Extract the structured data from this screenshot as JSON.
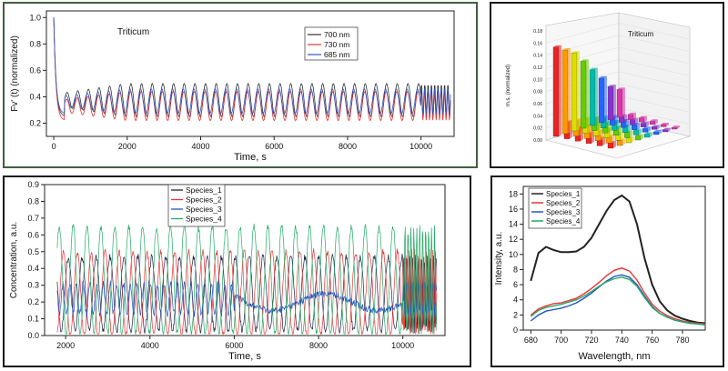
{
  "chart_data": [
    {
      "type": "line",
      "title": "Triticum",
      "xlabel": "Time, s",
      "ylabel": "Fv' (t) (normalized)",
      "xlim": [
        -200,
        10900
      ],
      "ylim": [
        0.1,
        1.05
      ],
      "xticks": [
        "0",
        "2000",
        "4000",
        "6000",
        "8000",
        "10000"
      ],
      "yticks": [
        "0.2",
        "0.4",
        "0.6",
        "0.8",
        "1.0"
      ],
      "legend_position": "top-right",
      "series": [
        {
          "name": "700 nm",
          "color": "#333333",
          "min": 0.25,
          "max": 0.5
        },
        {
          "name": "730 nm",
          "color": "#dd3333",
          "min": 0.22,
          "max": 0.44
        },
        {
          "name": "685 nm",
          "color": "#3355bb",
          "min": 0.27,
          "max": 0.46
        }
      ]
    },
    {
      "type": "bar3d",
      "title": "Triticum",
      "zlabel": "m.s. (normalized)",
      "zticks": [
        "0.00",
        "0.02",
        "0.04",
        "0.06",
        "0.08",
        "0.10",
        "0.12",
        "0.14",
        "0.16",
        "0.18"
      ],
      "values": [
        0.16,
        0.15,
        0.14,
        0.12,
        0.1,
        0.08,
        0.06,
        0.05
      ],
      "colors": [
        "#ee2222",
        "#ff9900",
        "#dddd00",
        "#66cc00",
        "#00bbaa",
        "#2266ff",
        "#8833cc",
        "#dd33aa"
      ]
    },
    {
      "type": "line",
      "xlabel": "Time, s",
      "ylabel": "Concentration, a.u.",
      "xlim": [
        1500,
        11000
      ],
      "ylim": [
        0,
        0.9
      ],
      "xticks": [
        "2000",
        "4000",
        "6000",
        "8000",
        "10000"
      ],
      "yticks": [
        "0.0",
        "0.1",
        "0.2",
        "0.3",
        "0.4",
        "0.5",
        "0.6",
        "0.7",
        "0.8",
        "0.9"
      ],
      "legend_position": "top-center",
      "series": [
        {
          "name": "Species_1",
          "color": "#222244"
        },
        {
          "name": "Species_2",
          "color": "#ee3333"
        },
        {
          "name": "Species_3",
          "color": "#2255bb"
        },
        {
          "name": "Species_4",
          "color": "#22aa66"
        }
      ]
    },
    {
      "type": "line",
      "xlabel": "Wavelength, nm",
      "ylabel": "Intensity, a.u.",
      "xlim": [
        675,
        795
      ],
      "ylim": [
        0,
        19
      ],
      "xticks": [
        "680",
        "700",
        "720",
        "740",
        "760",
        "780"
      ],
      "yticks": [
        "0",
        "2",
        "4",
        "6",
        "8",
        "10",
        "12",
        "14",
        "16",
        "18"
      ],
      "legend_position": "top-left",
      "x": [
        680,
        685,
        690,
        695,
        700,
        705,
        710,
        715,
        720,
        725,
        730,
        735,
        740,
        745,
        750,
        755,
        760,
        765,
        770,
        775,
        780,
        785,
        790,
        795
      ],
      "series": [
        {
          "name": "Species_1",
          "color": "#222222",
          "values": [
            6.5,
            10.2,
            11.0,
            10.6,
            10.3,
            10.3,
            10.4,
            11.0,
            12.2,
            14.0,
            15.8,
            17.2,
            17.8,
            17.0,
            14.0,
            9.5,
            6.0,
            3.8,
            2.6,
            1.9,
            1.5,
            1.2,
            1.0,
            0.9
          ]
        },
        {
          "name": "Species_2",
          "color": "#ee3333",
          "values": [
            2.0,
            2.8,
            3.2,
            3.5,
            3.6,
            3.9,
            4.2,
            4.8,
            5.5,
            6.3,
            7.2,
            7.9,
            8.2,
            7.8,
            6.6,
            4.9,
            3.4,
            2.5,
            1.9,
            1.5,
            1.2,
            1.0,
            0.9,
            0.8
          ]
        },
        {
          "name": "Species_3",
          "color": "#2255bb",
          "values": [
            1.2,
            2.0,
            2.5,
            2.7,
            2.9,
            3.2,
            3.6,
            4.2,
            4.9,
            5.7,
            6.5,
            7.1,
            7.3,
            7.0,
            6.0,
            4.5,
            3.1,
            2.2,
            1.7,
            1.3,
            1.1,
            0.9,
            0.8,
            0.7
          ]
        },
        {
          "name": "Species_4",
          "color": "#22aa66",
          "values": [
            1.8,
            2.6,
            3.0,
            3.2,
            3.4,
            3.7,
            4.0,
            4.5,
            5.1,
            5.8,
            6.4,
            6.8,
            7.0,
            6.7,
            5.8,
            4.3,
            3.0,
            2.2,
            1.7,
            1.3,
            1.1,
            0.9,
            0.8,
            0.7
          ]
        }
      ]
    }
  ]
}
